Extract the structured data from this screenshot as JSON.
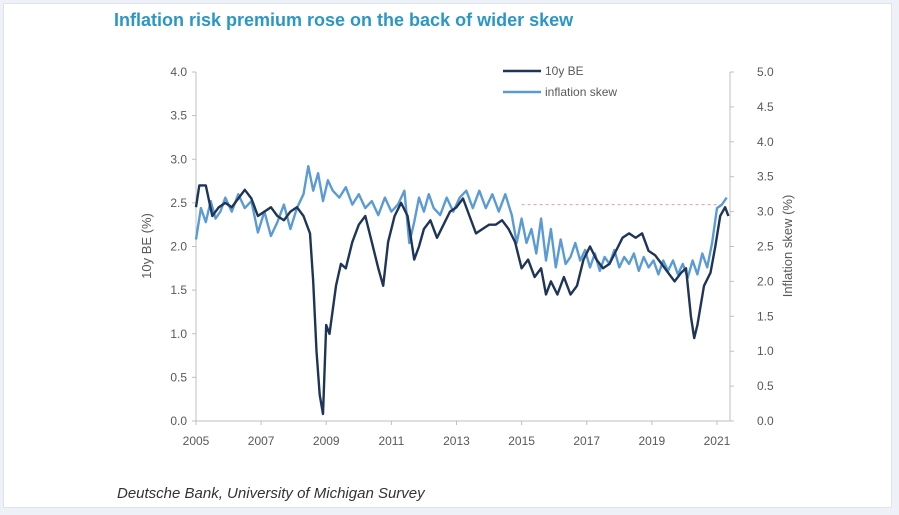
{
  "title": "Inflation risk premium rose on the back of wider skew",
  "source": "Deutsche Bank, University of Michigan Survey",
  "colors": {
    "title": "#2a97c7",
    "be_series": "#1e3558",
    "skew_series": "#5b9bd5",
    "reference_line": "#e7a0a0",
    "axis": "#bfbfbf",
    "tick_text": "#595959"
  },
  "chart_data": {
    "type": "line",
    "xlabel": "",
    "ylabel": "10y BE (%)",
    "y2label": "Inflation skew (%)",
    "xlim": [
      2005,
      2021.4
    ],
    "ylim": [
      0.0,
      4.0
    ],
    "y2lim": [
      0.0,
      5.0
    ],
    "x_ticks": [
      "2005",
      "2007",
      "2009",
      "2011",
      "2013",
      "2015",
      "2017",
      "2019",
      "2021"
    ],
    "y_ticks": [
      "0.0",
      "0.5",
      "1.0",
      "1.5",
      "2.0",
      "2.5",
      "3.0",
      "3.5",
      "4.0"
    ],
    "y2_ticks": [
      "0.0",
      "0.5",
      "1.0",
      "1.5",
      "2.0",
      "2.5",
      "3.0",
      "3.5",
      "4.0",
      "4.5",
      "5.0"
    ],
    "grid": false,
    "legend_position": "top-center",
    "reference_line": {
      "axis": "right",
      "value": 3.1,
      "from": 2015.0,
      "to": 2021.2
    },
    "series": [
      {
        "name": "10y BE",
        "axis": "left",
        "points": [
          [
            2005.0,
            2.45
          ],
          [
            2005.1,
            2.7
          ],
          [
            2005.3,
            2.7
          ],
          [
            2005.5,
            2.35
          ],
          [
            2005.7,
            2.45
          ],
          [
            2005.9,
            2.5
          ],
          [
            2006.1,
            2.45
          ],
          [
            2006.3,
            2.55
          ],
          [
            2006.5,
            2.65
          ],
          [
            2006.7,
            2.55
          ],
          [
            2006.9,
            2.35
          ],
          [
            2007.1,
            2.4
          ],
          [
            2007.3,
            2.45
          ],
          [
            2007.5,
            2.35
          ],
          [
            2007.7,
            2.3
          ],
          [
            2007.9,
            2.4
          ],
          [
            2008.1,
            2.45
          ],
          [
            2008.3,
            2.35
          ],
          [
            2008.5,
            2.15
          ],
          [
            2008.6,
            1.6
          ],
          [
            2008.7,
            0.8
          ],
          [
            2008.8,
            0.3
          ],
          [
            2008.9,
            0.08
          ],
          [
            2009.0,
            1.1
          ],
          [
            2009.1,
            1.0
          ],
          [
            2009.3,
            1.55
          ],
          [
            2009.45,
            1.8
          ],
          [
            2009.6,
            1.75
          ],
          [
            2009.8,
            2.05
          ],
          [
            2010.0,
            2.25
          ],
          [
            2010.2,
            2.35
          ],
          [
            2010.4,
            2.05
          ],
          [
            2010.6,
            1.75
          ],
          [
            2010.75,
            1.55
          ],
          [
            2010.9,
            2.05
          ],
          [
            2011.1,
            2.35
          ],
          [
            2011.3,
            2.5
          ],
          [
            2011.5,
            2.35
          ],
          [
            2011.7,
            1.85
          ],
          [
            2011.85,
            2.0
          ],
          [
            2012.0,
            2.2
          ],
          [
            2012.2,
            2.3
          ],
          [
            2012.4,
            2.1
          ],
          [
            2012.6,
            2.25
          ],
          [
            2012.8,
            2.4
          ],
          [
            2013.0,
            2.45
          ],
          [
            2013.2,
            2.55
          ],
          [
            2013.4,
            2.35
          ],
          [
            2013.6,
            2.15
          ],
          [
            2013.8,
            2.2
          ],
          [
            2014.0,
            2.25
          ],
          [
            2014.2,
            2.25
          ],
          [
            2014.4,
            2.3
          ],
          [
            2014.6,
            2.2
          ],
          [
            2014.8,
            2.05
          ],
          [
            2015.0,
            1.75
          ],
          [
            2015.2,
            1.85
          ],
          [
            2015.4,
            1.65
          ],
          [
            2015.6,
            1.75
          ],
          [
            2015.75,
            1.45
          ],
          [
            2015.9,
            1.6
          ],
          [
            2016.1,
            1.45
          ],
          [
            2016.3,
            1.65
          ],
          [
            2016.5,
            1.45
          ],
          [
            2016.7,
            1.55
          ],
          [
            2016.9,
            1.85
          ],
          [
            2017.1,
            2.0
          ],
          [
            2017.3,
            1.85
          ],
          [
            2017.5,
            1.75
          ],
          [
            2017.7,
            1.8
          ],
          [
            2017.9,
            1.95
          ],
          [
            2018.1,
            2.1
          ],
          [
            2018.3,
            2.15
          ],
          [
            2018.5,
            2.1
          ],
          [
            2018.7,
            2.15
          ],
          [
            2018.9,
            1.95
          ],
          [
            2019.1,
            1.9
          ],
          [
            2019.3,
            1.8
          ],
          [
            2019.5,
            1.7
          ],
          [
            2019.7,
            1.6
          ],
          [
            2019.9,
            1.7
          ],
          [
            2020.05,
            1.75
          ],
          [
            2020.2,
            1.2
          ],
          [
            2020.3,
            0.95
          ],
          [
            2020.4,
            1.1
          ],
          [
            2020.6,
            1.55
          ],
          [
            2020.8,
            1.7
          ],
          [
            2020.95,
            2.0
          ],
          [
            2021.1,
            2.35
          ],
          [
            2021.25,
            2.45
          ],
          [
            2021.35,
            2.35
          ]
        ]
      },
      {
        "name": "inflation skew",
        "axis": "right",
        "points": [
          [
            2005.0,
            2.6
          ],
          [
            2005.15,
            3.05
          ],
          [
            2005.3,
            2.85
          ],
          [
            2005.45,
            3.15
          ],
          [
            2005.6,
            2.9
          ],
          [
            2005.75,
            3.0
          ],
          [
            2005.9,
            3.2
          ],
          [
            2006.1,
            3.0
          ],
          [
            2006.3,
            3.25
          ],
          [
            2006.5,
            3.05
          ],
          [
            2006.7,
            3.15
          ],
          [
            2006.9,
            2.7
          ],
          [
            2007.1,
            3.0
          ],
          [
            2007.3,
            2.65
          ],
          [
            2007.5,
            2.85
          ],
          [
            2007.7,
            3.1
          ],
          [
            2007.9,
            2.75
          ],
          [
            2008.1,
            3.05
          ],
          [
            2008.3,
            3.25
          ],
          [
            2008.45,
            3.65
          ],
          [
            2008.6,
            3.3
          ],
          [
            2008.75,
            3.55
          ],
          [
            2008.9,
            3.15
          ],
          [
            2009.05,
            3.45
          ],
          [
            2009.2,
            3.3
          ],
          [
            2009.4,
            3.2
          ],
          [
            2009.6,
            3.35
          ],
          [
            2009.8,
            3.1
          ],
          [
            2010.0,
            3.25
          ],
          [
            2010.2,
            3.05
          ],
          [
            2010.4,
            3.15
          ],
          [
            2010.6,
            2.95
          ],
          [
            2010.8,
            3.2
          ],
          [
            2011.0,
            3.0
          ],
          [
            2011.2,
            3.1
          ],
          [
            2011.4,
            3.3
          ],
          [
            2011.55,
            2.55
          ],
          [
            2011.7,
            2.85
          ],
          [
            2011.85,
            3.2
          ],
          [
            2012.0,
            3.0
          ],
          [
            2012.15,
            3.25
          ],
          [
            2012.3,
            3.05
          ],
          [
            2012.5,
            2.95
          ],
          [
            2012.7,
            3.2
          ],
          [
            2012.9,
            3.0
          ],
          [
            2013.1,
            3.2
          ],
          [
            2013.3,
            3.3
          ],
          [
            2013.5,
            3.05
          ],
          [
            2013.7,
            3.3
          ],
          [
            2013.9,
            3.05
          ],
          [
            2014.1,
            3.25
          ],
          [
            2014.3,
            3.0
          ],
          [
            2014.5,
            3.25
          ],
          [
            2014.7,
            2.95
          ],
          [
            2014.85,
            2.55
          ],
          [
            2015.0,
            2.9
          ],
          [
            2015.15,
            2.55
          ],
          [
            2015.3,
            2.75
          ],
          [
            2015.45,
            2.4
          ],
          [
            2015.6,
            2.9
          ],
          [
            2015.75,
            2.3
          ],
          [
            2015.9,
            2.75
          ],
          [
            2016.05,
            2.2
          ],
          [
            2016.2,
            2.6
          ],
          [
            2016.35,
            2.25
          ],
          [
            2016.5,
            2.35
          ],
          [
            2016.65,
            2.55
          ],
          [
            2016.8,
            2.3
          ],
          [
            2016.95,
            2.45
          ],
          [
            2017.1,
            2.2
          ],
          [
            2017.25,
            2.4
          ],
          [
            2017.4,
            2.15
          ],
          [
            2017.55,
            2.35
          ],
          [
            2017.7,
            2.25
          ],
          [
            2017.85,
            2.45
          ],
          [
            2018.0,
            2.2
          ],
          [
            2018.15,
            2.35
          ],
          [
            2018.3,
            2.25
          ],
          [
            2018.45,
            2.4
          ],
          [
            2018.6,
            2.15
          ],
          [
            2018.75,
            2.35
          ],
          [
            2018.9,
            2.2
          ],
          [
            2019.05,
            2.3
          ],
          [
            2019.2,
            2.1
          ],
          [
            2019.35,
            2.3
          ],
          [
            2019.5,
            2.15
          ],
          [
            2019.65,
            2.3
          ],
          [
            2019.8,
            2.1
          ],
          [
            2019.95,
            2.25
          ],
          [
            2020.1,
            2.05
          ],
          [
            2020.25,
            2.3
          ],
          [
            2020.4,
            2.1
          ],
          [
            2020.55,
            2.4
          ],
          [
            2020.7,
            2.2
          ],
          [
            2020.85,
            2.55
          ],
          [
            2021.0,
            3.05
          ],
          [
            2021.15,
            3.1
          ],
          [
            2021.3,
            3.2
          ]
        ]
      }
    ]
  }
}
